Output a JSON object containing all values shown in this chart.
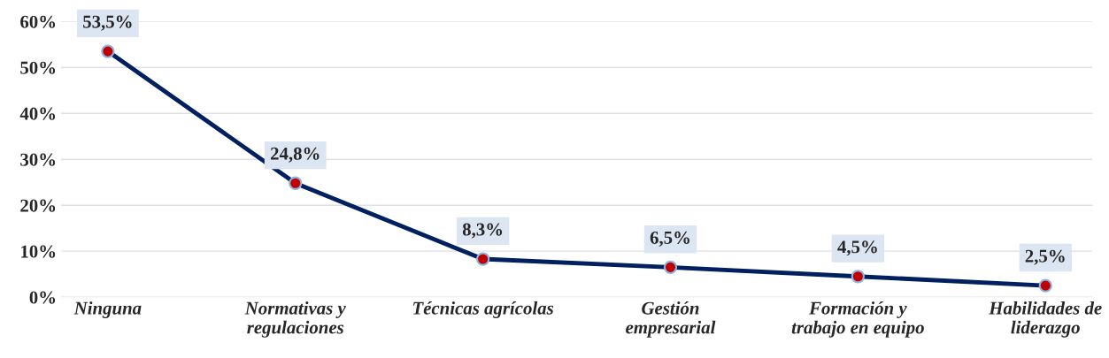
{
  "chart_data": {
    "type": "line",
    "categories": [
      "Ninguna",
      "Normativas y\nregulaciones",
      "Técnicas agrícolas",
      "Gestión\nempresarial",
      "Formación y\ntrabajo en equipo",
      "Habilidades de\nliderazgo"
    ],
    "series": [
      {
        "color": "#002060",
        "values": [
          53.5,
          24.8,
          8.3,
          6.5,
          4.5,
          2.5
        ],
        "value_labels": [
          "53,5%",
          "24,8%",
          "8,3%",
          "6,5%",
          "4,5%",
          "2,5%"
        ]
      }
    ],
    "ylim": [
      0,
      60
    ],
    "yticks": [
      {
        "value": 0,
        "label": "0%"
      },
      {
        "value": 10,
        "label": "10%"
      },
      {
        "value": 20,
        "label": "20%"
      },
      {
        "value": 30,
        "label": "30%"
      },
      {
        "value": 40,
        "label": "40%"
      },
      {
        "value": 50,
        "label": "50%"
      },
      {
        "value": 60,
        "label": "60%"
      }
    ],
    "grid": "y",
    "marker": "circle",
    "line_style": "solid",
    "legend": false
  }
}
